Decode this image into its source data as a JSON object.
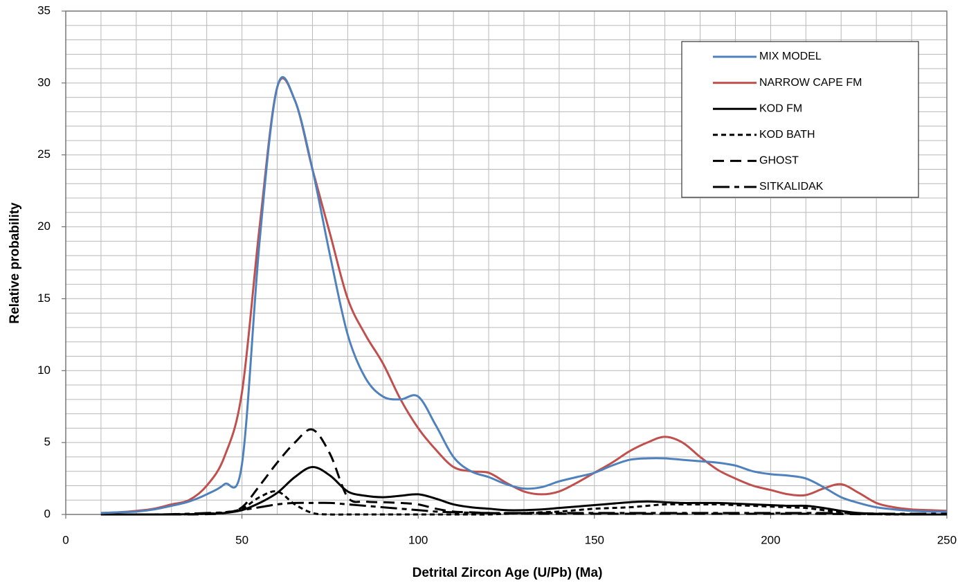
{
  "chart_data": {
    "type": "line",
    "x_label": "Detrital Zircon Age (U/Pb) (Ma)",
    "y_label": "Relative probability",
    "xlim": [
      0,
      250
    ],
    "ylim": [
      0,
      35
    ],
    "xticks": [
      0,
      50,
      100,
      150,
      200,
      250
    ],
    "yticks": [
      0,
      5,
      10,
      15,
      20,
      25,
      30,
      35
    ],
    "xgrid": [
      0,
      10,
      20,
      30,
      40,
      50,
      60,
      70,
      80,
      90,
      100,
      110,
      120,
      130,
      140,
      150,
      160,
      170,
      180,
      190,
      200,
      210,
      220,
      230,
      240,
      250
    ],
    "ygrid": [
      0,
      1,
      2,
      3,
      4,
      5,
      6,
      7,
      8,
      9,
      10,
      11,
      12,
      13,
      14,
      15,
      16,
      17,
      18,
      19,
      20,
      21,
      22,
      23,
      24,
      25,
      26,
      27,
      28,
      29,
      30,
      31,
      32,
      33,
      34,
      35
    ],
    "grid": true,
    "legend": "upper right",
    "x": [
      10,
      15,
      20,
      25,
      30,
      35,
      40,
      45,
      50,
      55,
      60,
      65,
      70,
      75,
      80,
      85,
      90,
      95,
      100,
      105,
      110,
      115,
      120,
      125,
      130,
      135,
      140,
      145,
      150,
      155,
      160,
      165,
      170,
      175,
      180,
      185,
      190,
      195,
      200,
      205,
      210,
      215,
      220,
      225,
      230,
      235,
      240,
      245,
      250
    ],
    "series": [
      {
        "name": "MIX MODEL",
        "color": "#4f81bd",
        "dash": "solid",
        "values": [
          0.1,
          0.15,
          0.2,
          0.35,
          0.6,
          0.9,
          1.4,
          2.1,
          3.5,
          19,
          29.7,
          28.8,
          24,
          18,
          12.5,
          9.5,
          8.2,
          8.0,
          8.2,
          6.2,
          4.0,
          3.0,
          2.6,
          2.1,
          1.8,
          1.9,
          2.3,
          2.6,
          2.9,
          3.4,
          3.8,
          3.9,
          3.9,
          3.8,
          3.7,
          3.6,
          3.4,
          3.0,
          2.8,
          2.7,
          2.5,
          1.9,
          1.2,
          0.8,
          0.5,
          0.35,
          0.25,
          0.2,
          0.2
        ]
      },
      {
        "name": "NARROW CAPE FM",
        "color": "#c0504d",
        "dash": "solid",
        "values": [
          0.1,
          0.15,
          0.25,
          0.4,
          0.7,
          1.0,
          2.0,
          4.0,
          8.5,
          20,
          29.7,
          28.8,
          24,
          19.5,
          15,
          12.5,
          10.5,
          8,
          6,
          4.5,
          3.3,
          3.0,
          2.9,
          2.2,
          1.6,
          1.4,
          1.6,
          2.2,
          2.9,
          3.6,
          4.4,
          5.0,
          5.4,
          5.0,
          4.0,
          3.1,
          2.5,
          2.0,
          1.7,
          1.4,
          1.35,
          1.8,
          2.1,
          1.5,
          0.8,
          0.5,
          0.35,
          0.3,
          0.25
        ]
      },
      {
        "name": "KOD FM",
        "color": "#000000",
        "dash": "solid",
        "values": [
          0,
          0,
          0,
          0,
          0,
          0.02,
          0.05,
          0.1,
          0.3,
          0.8,
          1.5,
          2.6,
          3.3,
          2.7,
          1.6,
          1.3,
          1.2,
          1.3,
          1.4,
          1.1,
          0.7,
          0.5,
          0.4,
          0.3,
          0.3,
          0.35,
          0.45,
          0.55,
          0.65,
          0.75,
          0.85,
          0.9,
          0.85,
          0.8,
          0.8,
          0.8,
          0.75,
          0.7,
          0.65,
          0.6,
          0.6,
          0.45,
          0.25,
          0.1,
          0.05,
          0.02,
          0,
          0,
          0
        ]
      },
      {
        "name": "KOD BATH",
        "color": "#000000",
        "dash": "short-dash",
        "values": [
          0,
          0,
          0,
          0,
          0,
          0.02,
          0.05,
          0.15,
          0.4,
          1.2,
          1.6,
          0.7,
          0.1,
          0,
          0,
          0,
          0,
          0,
          0,
          0,
          0,
          0,
          0,
          0.05,
          0.1,
          0.15,
          0.2,
          0.3,
          0.4,
          0.45,
          0.5,
          0.6,
          0.7,
          0.7,
          0.7,
          0.7,
          0.65,
          0.6,
          0.55,
          0.5,
          0.45,
          0.3,
          0.15,
          0.05,
          0.02,
          0,
          0,
          0,
          0
        ]
      },
      {
        "name": "GHOST",
        "color": "#000000",
        "dash": "long-dash",
        "values": [
          0,
          0,
          0,
          0,
          0,
          0,
          0.02,
          0.1,
          0.5,
          2.0,
          3.6,
          5.0,
          5.9,
          4.2,
          1.2,
          0.9,
          0.85,
          0.8,
          0.7,
          0.4,
          0.2,
          0.15,
          0.1,
          0.08,
          0.06,
          0.05,
          0.05,
          0.05,
          0.05,
          0.05,
          0.05,
          0.05,
          0.05,
          0.05,
          0.05,
          0.05,
          0.05,
          0.05,
          0.05,
          0.05,
          0.05,
          0.04,
          0.03,
          0.02,
          0.02,
          0.01,
          0.01,
          0,
          0
        ]
      },
      {
        "name": "SITKALIDAK",
        "color": "#000000",
        "dash": "dash-dot",
        "values": [
          0,
          0,
          0,
          0,
          0.02,
          0.05,
          0.1,
          0.15,
          0.3,
          0.5,
          0.7,
          0.8,
          0.8,
          0.8,
          0.7,
          0.6,
          0.5,
          0.4,
          0.3,
          0.2,
          0.15,
          0.12,
          0.1,
          0.1,
          0.1,
          0.1,
          0.1,
          0.1,
          0.1,
          0.1,
          0.1,
          0.1,
          0.1,
          0.1,
          0.1,
          0.1,
          0.1,
          0.1,
          0.1,
          0.1,
          0.1,
          0.1,
          0.08,
          0.07,
          0.06,
          0.05,
          0.05,
          0.05,
          0.05
        ]
      }
    ]
  }
}
